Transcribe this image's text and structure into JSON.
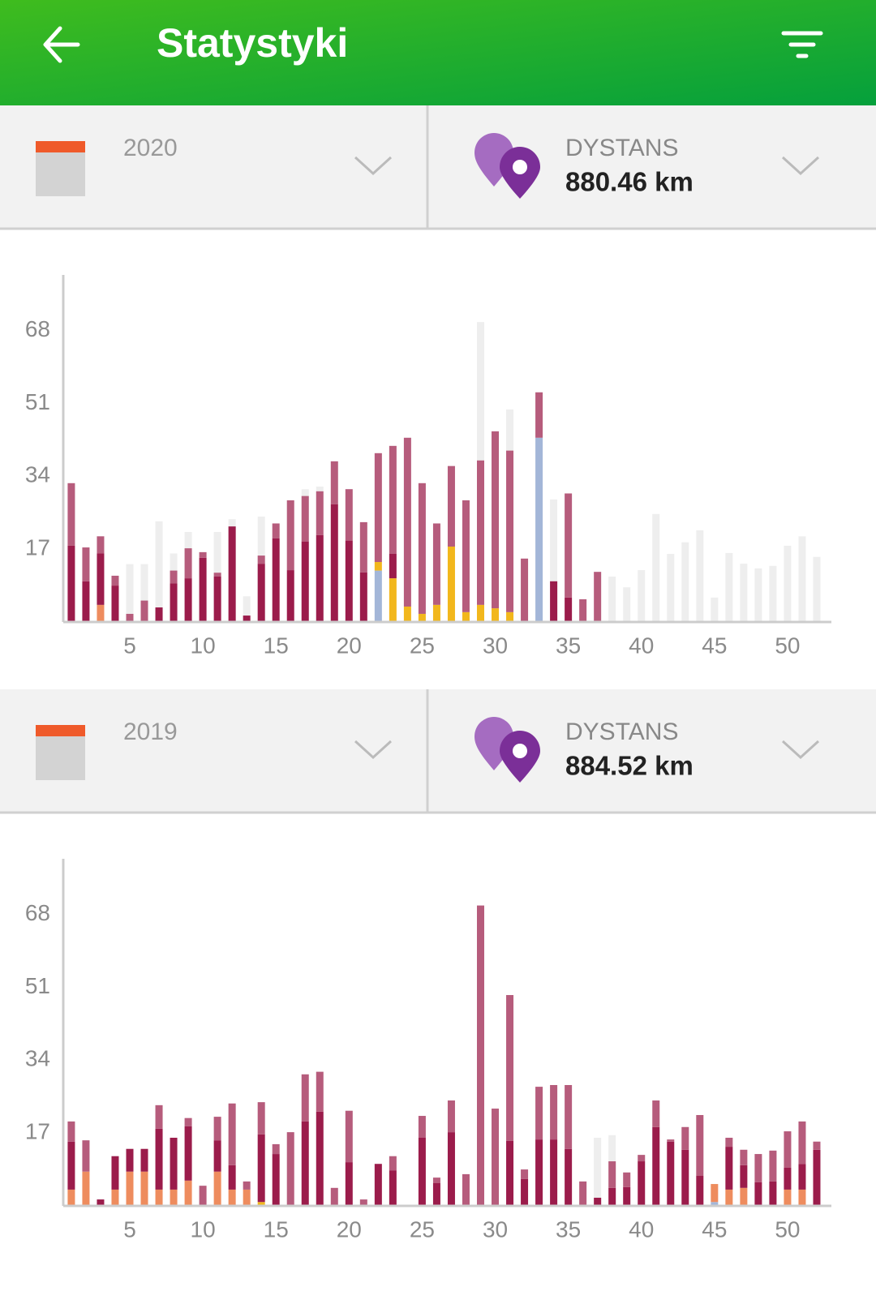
{
  "header": {
    "title": "Statystyki"
  },
  "chart_data": [
    {
      "type": "bar",
      "stacked": true,
      "year": "2020",
      "metric": "DYSTANS",
      "metric_value": "880.46 km",
      "x": [
        1,
        2,
        3,
        4,
        5,
        6,
        7,
        8,
        9,
        10,
        11,
        12,
        13,
        14,
        15,
        16,
        17,
        18,
        19,
        20,
        21,
        22,
        23,
        24,
        25,
        26,
        27,
        28,
        29,
        30,
        31,
        32,
        33,
        34,
        35,
        36,
        37,
        38,
        39,
        40,
        41,
        42,
        43,
        44,
        45,
        46,
        47,
        48,
        49,
        50,
        51,
        52
      ],
      "xlim": [
        0.45,
        53
      ],
      "xticks": [
        5,
        10,
        15,
        20,
        25,
        30,
        35,
        40,
        45,
        50
      ],
      "ylim": [
        0,
        81
      ],
      "yticks": [
        17,
        34,
        51,
        68
      ],
      "grid": false,
      "comparison": {
        "color": "#eeeeee",
        "values": [
          null,
          null,
          null,
          null,
          13.5,
          13.5,
          23.5,
          16,
          21,
          null,
          21,
          24,
          6,
          24.6,
          null,
          null,
          31,
          31.6,
          null,
          null,
          null,
          null,
          null,
          null,
          null,
          null,
          null,
          null,
          70,
          null,
          49.6,
          null,
          null,
          28.6,
          null,
          null,
          null,
          10.6,
          8.1,
          12.1,
          25.2,
          15.9,
          18.6,
          21.4,
          5.7,
          16.1,
          13.6,
          12.5,
          13.1,
          17.8,
          20,
          15.2
        ]
      },
      "series": [
        {
          "color": "#a3b6d8",
          "values": [
            null,
            null,
            null,
            null,
            null,
            null,
            null,
            null,
            null,
            null,
            null,
            null,
            null,
            null,
            null,
            null,
            null,
            null,
            null,
            null,
            null,
            12,
            null,
            null,
            null,
            null,
            null,
            null,
            null,
            null,
            null,
            null,
            43,
            null,
            null,
            null,
            null,
            null,
            null,
            null,
            null,
            null,
            null,
            null,
            null,
            null,
            null,
            null,
            null,
            null,
            null,
            null
          ]
        },
        {
          "color": "#f2b71c",
          "values": [
            null,
            null,
            null,
            null,
            null,
            null,
            null,
            null,
            null,
            null,
            null,
            null,
            null,
            null,
            null,
            null,
            null,
            null,
            null,
            null,
            null,
            2,
            10.2,
            3.6,
            1.9,
            4,
            17.6,
            2.3,
            4,
            3.2,
            2.3,
            null,
            null,
            null,
            null,
            null,
            null,
            null,
            null,
            null,
            null,
            null,
            null,
            null,
            null,
            null,
            null,
            null,
            null,
            null,
            null,
            null
          ]
        },
        {
          "color": "#ee8c5e",
          "values": [
            null,
            null,
            4,
            null,
            null,
            null,
            null,
            null,
            null,
            null,
            null,
            null,
            null,
            null,
            null,
            null,
            null,
            null,
            null,
            null,
            null,
            null,
            null,
            null,
            null,
            null,
            null,
            null,
            null,
            null,
            null,
            null,
            null,
            null,
            null,
            null,
            null,
            null,
            null,
            null,
            null,
            null,
            null,
            null,
            null,
            null,
            null,
            null,
            null,
            null,
            null,
            null
          ]
        },
        {
          "color": "#9b1c4b",
          "values": [
            17.8,
            9.5,
            12,
            8.5,
            null,
            null,
            3.4,
            9,
            10.2,
            15,
            10.6,
            22.3,
            1.5,
            13.6,
            19.5,
            12.1,
            18.8,
            20.3,
            27.5,
            19,
            11.6,
            null,
            5.7,
            null,
            null,
            null,
            null,
            null,
            null,
            null,
            null,
            null,
            null,
            9.5,
            5.7,
            null,
            null,
            null,
            null,
            null,
            null,
            null,
            null,
            null,
            null,
            null,
            null,
            null,
            null,
            null,
            null,
            null
          ]
        },
        {
          "color": "#b65c7c",
          "values": [
            14.6,
            7.9,
            4,
            2.3,
            1.9,
            5,
            null,
            3,
            7,
            1.3,
            0.9,
            null,
            null,
            1.9,
            3.5,
            16.3,
            10.6,
            10.2,
            10,
            12,
            11.7,
            25.4,
            25.2,
            39.4,
            30.5,
            19,
            18.8,
            26.1,
            33.7,
            41.3,
            37.7,
            14.8,
            10.6,
            null,
            24.3,
            5.3,
            11.7,
            null,
            null,
            null,
            null,
            null,
            null,
            null,
            null,
            null,
            null,
            null,
            null,
            null,
            null,
            null
          ]
        }
      ]
    },
    {
      "type": "bar",
      "stacked": true,
      "year": "2019",
      "metric": "DYSTANS",
      "metric_value": "884.52 km",
      "x": [
        1,
        2,
        3,
        4,
        5,
        6,
        7,
        8,
        9,
        10,
        11,
        12,
        13,
        14,
        15,
        16,
        17,
        18,
        19,
        20,
        21,
        22,
        23,
        24,
        25,
        26,
        27,
        28,
        29,
        30,
        31,
        32,
        33,
        34,
        35,
        36,
        37,
        38,
        39,
        40,
        41,
        42,
        43,
        44,
        45,
        46,
        47,
        48,
        49,
        50,
        51,
        52
      ],
      "xlim": [
        0.45,
        53
      ],
      "xticks": [
        5,
        10,
        15,
        20,
        25,
        30,
        35,
        40,
        45,
        50
      ],
      "ylim": [
        0,
        81
      ],
      "yticks": [
        17,
        34,
        51,
        68
      ],
      "grid": false,
      "comparison": {
        "color": "#eeeeee",
        "values": [
          null,
          null,
          null,
          null,
          null,
          null,
          null,
          null,
          null,
          null,
          null,
          null,
          null,
          null,
          null,
          null,
          null,
          null,
          null,
          null,
          null,
          null,
          null,
          null,
          null,
          null,
          null,
          null,
          null,
          null,
          null,
          null,
          null,
          null,
          null,
          null,
          15.9,
          16.5,
          null,
          null,
          null,
          null,
          null,
          null,
          null,
          null,
          null,
          null,
          null,
          null,
          null,
          null
        ]
      },
      "series": [
        {
          "color": "#a3b6d8",
          "values": [
            null,
            null,
            null,
            null,
            null,
            null,
            null,
            null,
            null,
            null,
            null,
            null,
            null,
            null,
            null,
            null,
            null,
            null,
            null,
            null,
            null,
            null,
            null,
            null,
            null,
            null,
            null,
            null,
            null,
            null,
            null,
            null,
            null,
            null,
            null,
            null,
            null,
            null,
            null,
            null,
            null,
            null,
            null,
            null,
            0.9,
            null,
            null,
            null,
            null,
            null,
            null,
            null
          ]
        },
        {
          "color": "#f2b71c",
          "values": [
            null,
            null,
            null,
            null,
            null,
            null,
            null,
            null,
            null,
            null,
            null,
            null,
            null,
            0.9,
            null,
            null,
            null,
            null,
            null,
            null,
            null,
            null,
            null,
            null,
            null,
            null,
            null,
            null,
            null,
            null,
            null,
            null,
            null,
            null,
            null,
            null,
            null,
            null,
            null,
            null,
            null,
            null,
            null,
            null,
            null,
            null,
            null,
            null,
            null,
            null,
            null,
            null
          ]
        },
        {
          "color": "#ee8c5e",
          "values": [
            3.8,
            8,
            null,
            3.8,
            8,
            8,
            3.8,
            3.8,
            5.9,
            null,
            8,
            3.8,
            3.8,
            null,
            null,
            null,
            null,
            null,
            null,
            null,
            null,
            null,
            null,
            null,
            null,
            null,
            null,
            null,
            null,
            null,
            null,
            null,
            null,
            null,
            null,
            null,
            null,
            null,
            null,
            null,
            null,
            null,
            null,
            null,
            4.2,
            3.8,
            4.2,
            null,
            null,
            3.8,
            3.8,
            null
          ]
        },
        {
          "color": "#9b1c4b",
          "values": [
            11.2,
            null,
            1.5,
            7.8,
            5.3,
            5.3,
            14.2,
            12.1,
            12.7,
            null,
            7.3,
            5.7,
            null,
            15.8,
            12.1,
            null,
            19.7,
            22,
            null,
            10.2,
            null,
            9.8,
            8.3,
            null,
            15.9,
            5.3,
            17.2,
            null,
            null,
            null,
            15.2,
            6.3,
            15.5,
            15.5,
            13.3,
            null,
            1.9,
            4.2,
            4.4,
            10.4,
            18.4,
            15,
            13.1,
            7,
            null,
            10,
            5.3,
            5.5,
            5.7,
            5.1,
            6,
            13.1
          ]
        },
        {
          "color": "#b65c7c",
          "values": [
            4.7,
            7.3,
            null,
            null,
            null,
            null,
            5.5,
            null,
            1.9,
            4.7,
            5.5,
            14.4,
            1.9,
            7.5,
            2.3,
            17.2,
            11,
            9.3,
            4.2,
            12,
            1.5,
            null,
            3.3,
            null,
            5.1,
            1.3,
            7.4,
            7.4,
            70.1,
            22.7,
            34,
            2.2,
            12.3,
            12.7,
            14.9,
            5.7,
            null,
            6.2,
            3.4,
            1.5,
            6.2,
            0.5,
            5.3,
            14.2,
            null,
            2.1,
            3.6,
            6.6,
            7.2,
            8.5,
            9.9,
            1.9
          ]
        }
      ]
    }
  ]
}
